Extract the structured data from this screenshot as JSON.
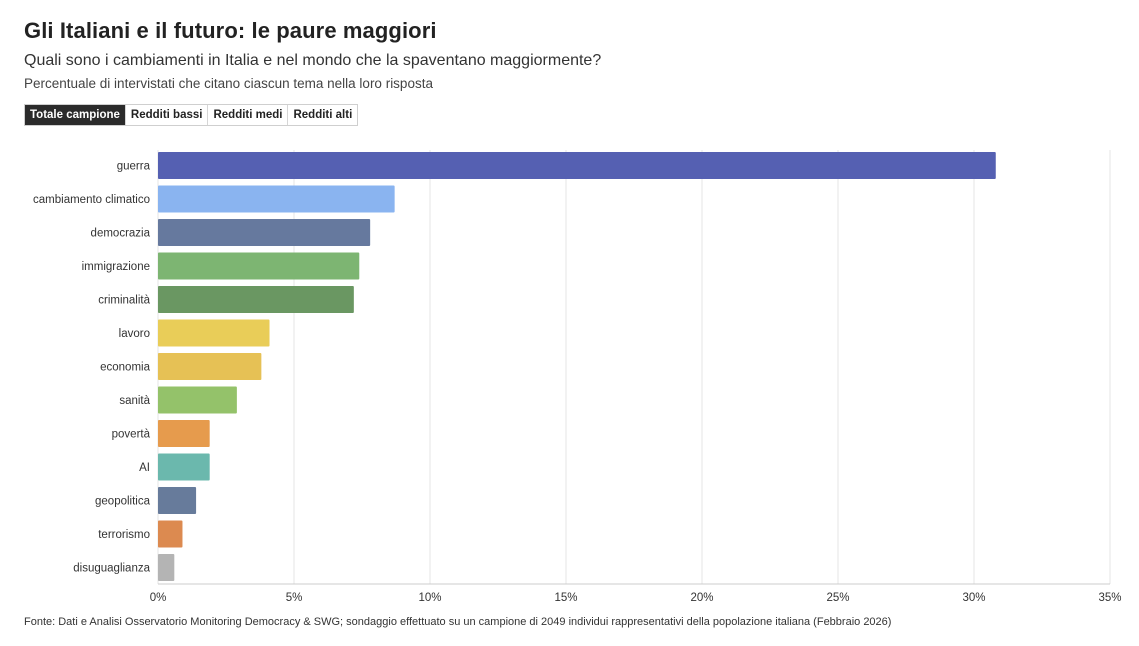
{
  "title": "Gli Italiani e il futuro: le paure maggiori",
  "subtitle": "Quali sono i cambiamenti in Italia e nel mondo che la spaventano maggiormente?",
  "note": "Percentuale di intervistati che citano ciascun tema nella loro risposta",
  "tabs": [
    {
      "label": "Totale campione",
      "active": true
    },
    {
      "label": "Redditi bassi",
      "active": false
    },
    {
      "label": "Redditi medi",
      "active": false
    },
    {
      "label": "Redditi alti",
      "active": false
    }
  ],
  "source": "Fonte: Dati e Analisi Osservatorio Monitoring Democracy & SWG; sondaggio effettuato su un campione di 2049 individui rappresentativi della popolazione italiana (Febbraio 2026)",
  "chart_data": {
    "type": "bar",
    "orientation": "horizontal",
    "categories": [
      "guerra",
      "cambiamento climatico",
      "democrazia",
      "immigrazione",
      "criminalità",
      "lavoro",
      "economia",
      "sanità",
      "povertà",
      "AI",
      "geopolitica",
      "terrorismo",
      "disuguaglianza"
    ],
    "values": [
      30.8,
      8.7,
      7.8,
      7.4,
      7.2,
      4.1,
      3.8,
      2.9,
      1.9,
      1.9,
      1.4,
      0.9,
      0.6
    ],
    "colors": [
      "#5560b2",
      "#8ab4f0",
      "#66799e",
      "#7db572",
      "#6a9762",
      "#e9cd58",
      "#e6c155",
      "#94c26a",
      "#e69b4d",
      "#6bb8ad",
      "#677b9b",
      "#dc8a50",
      "#b4b4b4"
    ],
    "xlim": [
      0,
      35
    ],
    "xticks": [
      0,
      5,
      10,
      15,
      20,
      25,
      30,
      35
    ],
    "tick_format": "%",
    "grid": true,
    "xlabel": "",
    "ylabel": ""
  }
}
